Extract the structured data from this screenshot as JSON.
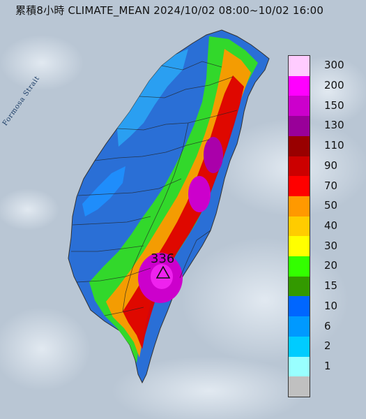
{
  "header": {
    "title": "累積8小時 CLIMATE_MEAN 2024/10/02 08:00~10/02 16:00"
  },
  "map": {
    "strait_label": "Formosa Strait",
    "max_value": "336",
    "colors": {
      "sea": "#b9c6d4",
      "cloud": "#dfe7ef"
    }
  },
  "legend": {
    "items": [
      {
        "label": "300",
        "color": "#ffccff"
      },
      {
        "label": "200",
        "color": "#ff00ff"
      },
      {
        "label": "150",
        "color": "#cc00cc"
      },
      {
        "label": "130",
        "color": "#990099"
      },
      {
        "label": "110",
        "color": "#990000"
      },
      {
        "label": "90",
        "color": "#cc0000"
      },
      {
        "label": "70",
        "color": "#ff0000"
      },
      {
        "label": "50",
        "color": "#ff9900"
      },
      {
        "label": "40",
        "color": "#ffcc00"
      },
      {
        "label": "30",
        "color": "#ffff00"
      },
      {
        "label": "20",
        "color": "#33ff00"
      },
      {
        "label": "15",
        "color": "#339900"
      },
      {
        "label": "10",
        "color": "#0066ff"
      },
      {
        "label": "6",
        "color": "#0099ff"
      },
      {
        "label": "2",
        "color": "#00ccff"
      },
      {
        "label": "1",
        "color": "#99ffff"
      },
      {
        "label": "",
        "color": "#c0c0c0"
      }
    ]
  }
}
